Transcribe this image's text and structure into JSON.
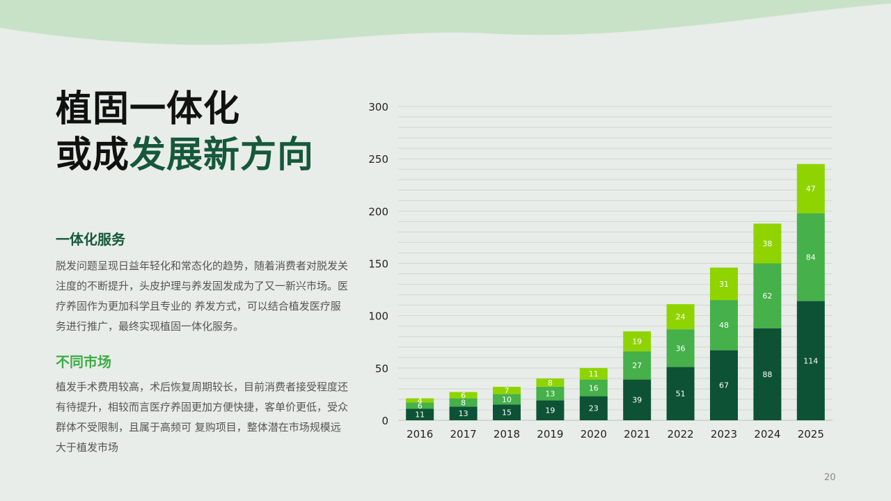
{
  "title": {
    "line1": "植固一体化",
    "line2_plain": "或成",
    "line2_accent": "发展新方向"
  },
  "sections": [
    {
      "heading": "一体化服务",
      "body": "脱发问题呈现日益年轻化和常态化的趋势，随着消费者对脱发关注度的不断提升，头皮护理与养发固发成为了又一新兴市场。医疗养固作为更加科学且专业的 养发方式，可以结合植发医疗服务进行推广，最终实现植固一体化服务。"
    },
    {
      "heading": "不同市场",
      "body": "植发手术费用较高，术后恢复周期较长，目前消费者接受程度还有待提升，相较而言医疗养固更加方便快捷，客单价更低，受众群体不受限制，且属于高频可 复购项目，整体潜在市场规模远大于植发市场"
    }
  ],
  "page_number": "20",
  "colors": {
    "dark": "#0d5235",
    "mid": "#46b04a",
    "light": "#8fd400",
    "title_accent": "#16583a",
    "heading2": "#3dac45"
  },
  "chart_data": {
    "type": "bar",
    "stacked": true,
    "categories": [
      "2016",
      "2017",
      "2018",
      "2019",
      "2020",
      "2021",
      "2022",
      "2023",
      "2024",
      "2025"
    ],
    "series": [
      {
        "values": [
          11,
          13,
          15,
          19,
          23,
          39,
          51,
          67,
          88,
          114
        ]
      },
      {
        "values": [
          6,
          8,
          10,
          13,
          16,
          27,
          36,
          48,
          62,
          84
        ]
      },
      {
        "values": [
          4,
          6,
          7,
          8,
          11,
          19,
          24,
          31,
          38,
          47
        ]
      }
    ],
    "ylim": [
      0,
      300
    ],
    "yticks": [
      0,
      50,
      100,
      150,
      200,
      250,
      300
    ],
    "grid": true,
    "legend": "none",
    "title": "",
    "xlabel": "",
    "ylabel": ""
  }
}
